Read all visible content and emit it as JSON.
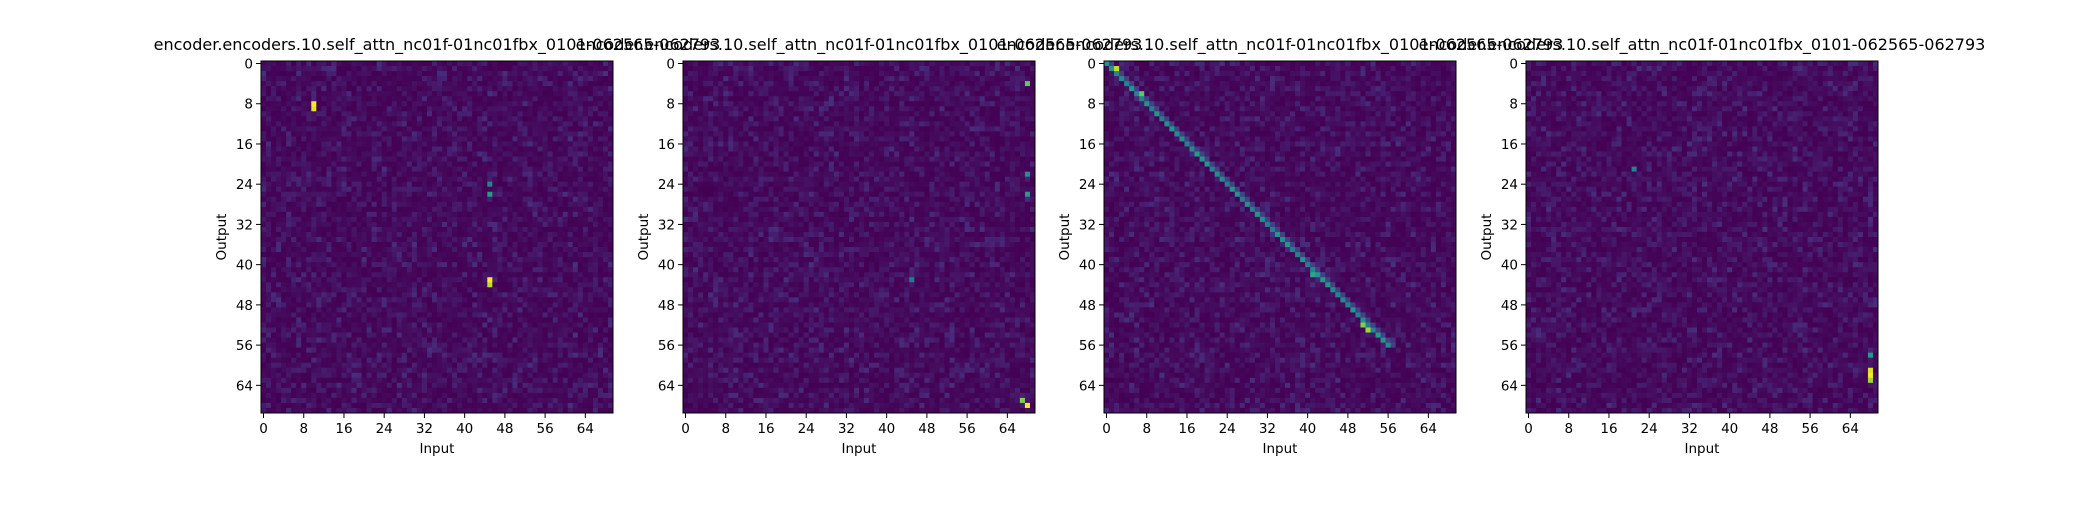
{
  "colors": {
    "colormap": "viridis",
    "low": "#440154",
    "high": "#fde725",
    "background": "#ffffff"
  },
  "chart_data": [
    {
      "type": "heatmap",
      "title": "encoder.encoders.10.self_attn_nc01f-01nc01fbx_0101-062565-062793",
      "xlabel": "Input",
      "ylabel": "Output",
      "x_ticks": [
        "0",
        "8",
        "16",
        "24",
        "32",
        "40",
        "48",
        "56",
        "64"
      ],
      "y_ticks": [
        "0",
        "8",
        "16",
        "24",
        "32",
        "40",
        "48",
        "56",
        "64"
      ],
      "shape": [
        70,
        70
      ],
      "colormap": "viridis",
      "hotspots": [
        {
          "row": 8,
          "col": 10,
          "value": 1.0
        },
        {
          "row": 9,
          "col": 10,
          "value": 0.95
        },
        {
          "row": 43,
          "col": 45,
          "value": 1.0
        },
        {
          "row": 44,
          "col": 45,
          "value": 0.9
        },
        {
          "row": 26,
          "col": 45,
          "value": 0.55
        },
        {
          "row": 24,
          "col": 45,
          "value": 0.45
        }
      ]
    },
    {
      "type": "heatmap",
      "title": "encoder.encoders.10.self_attn_nc01f-01nc01fbx_0101-062565-062793",
      "xlabel": "Input",
      "ylabel": "Output",
      "x_ticks": [
        "0",
        "8",
        "16",
        "24",
        "32",
        "40",
        "48",
        "56",
        "64"
      ],
      "y_ticks": [
        "0",
        "8",
        "16",
        "24",
        "32",
        "40",
        "48",
        "56",
        "64"
      ],
      "shape": [
        70,
        70
      ],
      "colormap": "viridis",
      "hotspots": [
        {
          "row": 68,
          "col": 68,
          "value": 1.0
        },
        {
          "row": 67,
          "col": 67,
          "value": 0.8
        },
        {
          "row": 4,
          "col": 68,
          "value": 0.75
        },
        {
          "row": 26,
          "col": 68,
          "value": 0.55
        },
        {
          "row": 22,
          "col": 68,
          "value": 0.5
        },
        {
          "row": 43,
          "col": 45,
          "value": 0.4
        }
      ]
    },
    {
      "type": "heatmap",
      "title": "encoder.encoders.10.self_attn_nc01f-01nc01fbx_0101-062565-062793",
      "xlabel": "Input",
      "ylabel": "Output",
      "x_ticks": [
        "0",
        "8",
        "16",
        "24",
        "32",
        "40",
        "48",
        "56",
        "64"
      ],
      "y_ticks": [
        "0",
        "8",
        "16",
        "24",
        "32",
        "40",
        "48",
        "56",
        "64"
      ],
      "shape": [
        70,
        70
      ],
      "colormap": "viridis",
      "diagonal": {
        "from": 0,
        "to": 56,
        "value": 0.55
      },
      "hotspots": [
        {
          "row": 1,
          "col": 2,
          "value": 0.9
        },
        {
          "row": 6,
          "col": 7,
          "value": 0.75
        },
        {
          "row": 52,
          "col": 51,
          "value": 0.8
        },
        {
          "row": 53,
          "col": 52,
          "value": 0.85
        },
        {
          "row": 42,
          "col": 41,
          "value": 0.6
        }
      ]
    },
    {
      "type": "heatmap",
      "title": "encoder.encoders.10.self_attn_nc01f-01nc01fbx_0101-062565-062793",
      "xlabel": "Input",
      "ylabel": "Output",
      "x_ticks": [
        "0",
        "8",
        "16",
        "24",
        "32",
        "40",
        "48",
        "56",
        "64"
      ],
      "y_ticks": [
        "0",
        "8",
        "16",
        "24",
        "32",
        "40",
        "48",
        "56",
        "64"
      ],
      "shape": [
        70,
        70
      ],
      "colormap": "viridis",
      "hotspots": [
        {
          "row": 62,
          "col": 68,
          "value": 1.0
        },
        {
          "row": 61,
          "col": 68,
          "value": 0.95
        },
        {
          "row": 63,
          "col": 68,
          "value": 0.85
        },
        {
          "row": 58,
          "col": 68,
          "value": 0.55
        },
        {
          "row": 21,
          "col": 21,
          "value": 0.45
        }
      ]
    }
  ]
}
